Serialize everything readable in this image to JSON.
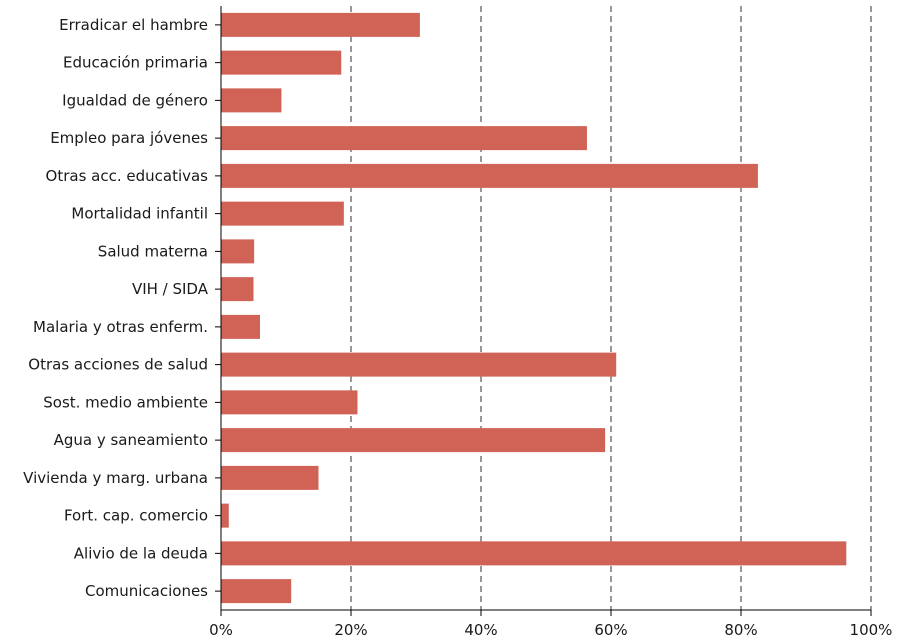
{
  "chart_data": {
    "type": "bar",
    "orientation": "horizontal",
    "categories": [
      "Erradicar el hambre",
      "Educación primaria",
      "Igualdad de género",
      "Empleo para jóvenes",
      "Otras acc. educativas",
      "Mortalidad infantil",
      "Salud materna",
      "VIH / SIDA",
      "Malaria y otras enferm.",
      "Otras acciones de salud",
      "Sost. medio ambiente",
      "Agua y saneamiento",
      "Vivienda y marg. urbana",
      "Fort. cap. comercio",
      "Alivio de la deuda",
      "Comunicaciones"
    ],
    "values": [
      30.6,
      18.5,
      9.3,
      56.3,
      82.6,
      18.9,
      5.1,
      5.0,
      6.0,
      60.8,
      21.0,
      59.1,
      15.0,
      1.2,
      96.2,
      10.8
    ],
    "xlim": [
      0,
      100
    ],
    "x_ticks": [
      0,
      20,
      40,
      60,
      80,
      100
    ],
    "x_tick_labels": [
      "0%",
      "20%",
      "40%",
      "60%",
      "80%",
      "100%"
    ],
    "grid": "vertical dashed",
    "bar_color": "#d06356",
    "legend": "none"
  }
}
